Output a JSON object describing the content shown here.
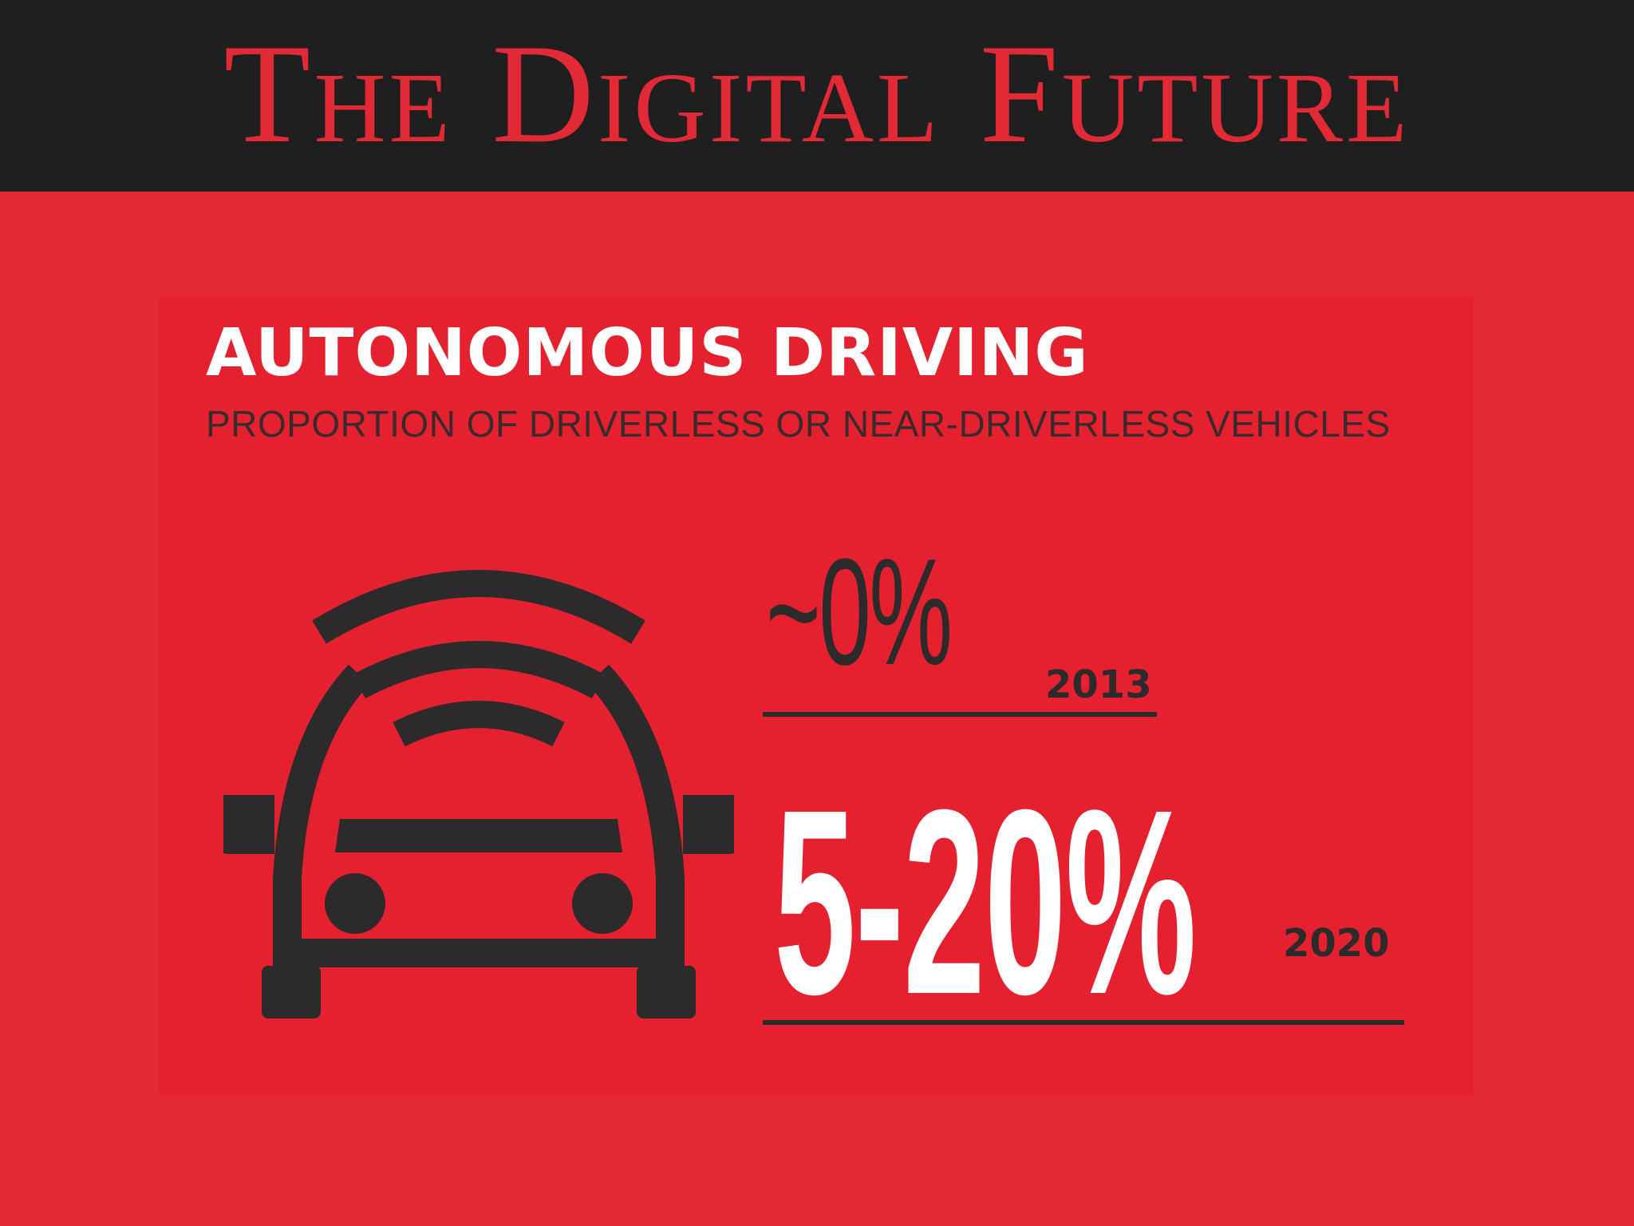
{
  "header": {
    "title": "The Digital Future"
  },
  "infographic": {
    "title": "AUTONOMOUS DRIVING",
    "subtitle": "PROPORTION OF DRIVERLESS OR NEAR-DRIVERLESS VEHICLES",
    "icon": "autonomous-car-icon",
    "stats": [
      {
        "value": "~0%",
        "year": "2013"
      },
      {
        "value": "5-20%",
        "year": "2020"
      }
    ]
  },
  "colors": {
    "background_red": "#e22935",
    "header_dark": "#1f1f1f",
    "title_red": "#e22936",
    "dark_text": "#2d2a2b",
    "white": "#ffffff"
  }
}
